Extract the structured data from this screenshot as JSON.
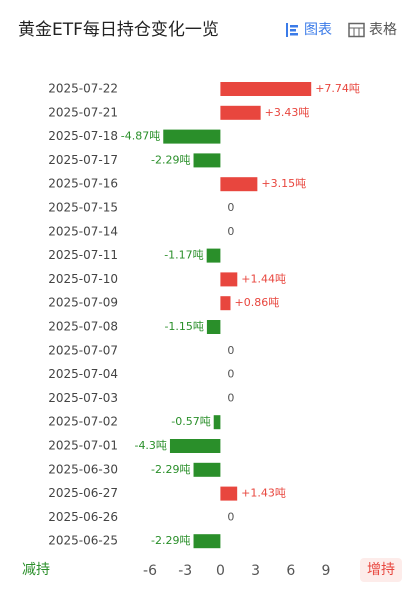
{
  "header": {
    "title": "黄金ETF每日持仓变化一览",
    "tabs": [
      "图表",
      "表格"
    ]
  },
  "chart_data": {
    "type": "bar",
    "orientation": "horizontal",
    "categories": [
      "2025-07-22",
      "2025-07-21",
      "2025-07-18",
      "2025-07-17",
      "2025-07-16",
      "2025-07-15",
      "2025-07-14",
      "2025-07-11",
      "2025-07-10",
      "2025-07-09",
      "2025-07-08",
      "2025-07-07",
      "2025-07-04",
      "2025-07-03",
      "2025-07-02",
      "2025-07-01",
      "2025-06-30",
      "2025-06-27",
      "2025-06-26",
      "2025-06-25"
    ],
    "values": [
      7.74,
      3.43,
      -4.87,
      -2.29,
      3.15,
      0,
      0,
      -1.17,
      1.44,
      0.86,
      -1.15,
      0,
      0,
      0,
      -0.57,
      -4.3,
      -2.29,
      1.43,
      0,
      -2.29
    ],
    "value_labels": [
      "+7.74吨",
      "+3.43吨",
      "-4.87吨",
      "-2.29吨",
      "+3.15吨",
      "0",
      "0",
      "-1.17吨",
      "+1.44吨",
      "+0.86吨",
      "-1.15吨",
      "0",
      "0",
      "0",
      "-0.57吨",
      "-4.3吨",
      "-2.29吨",
      "+1.43吨",
      "0",
      "-2.29吨"
    ],
    "xlim": [
      -6,
      9
    ],
    "xticks": [
      -6,
      -3,
      0,
      3,
      6,
      9
    ],
    "colors": {
      "positive": "#e8463e",
      "negative": "#2a8f2a"
    },
    "annotations": [
      "减持",
      "增持"
    ]
  }
}
